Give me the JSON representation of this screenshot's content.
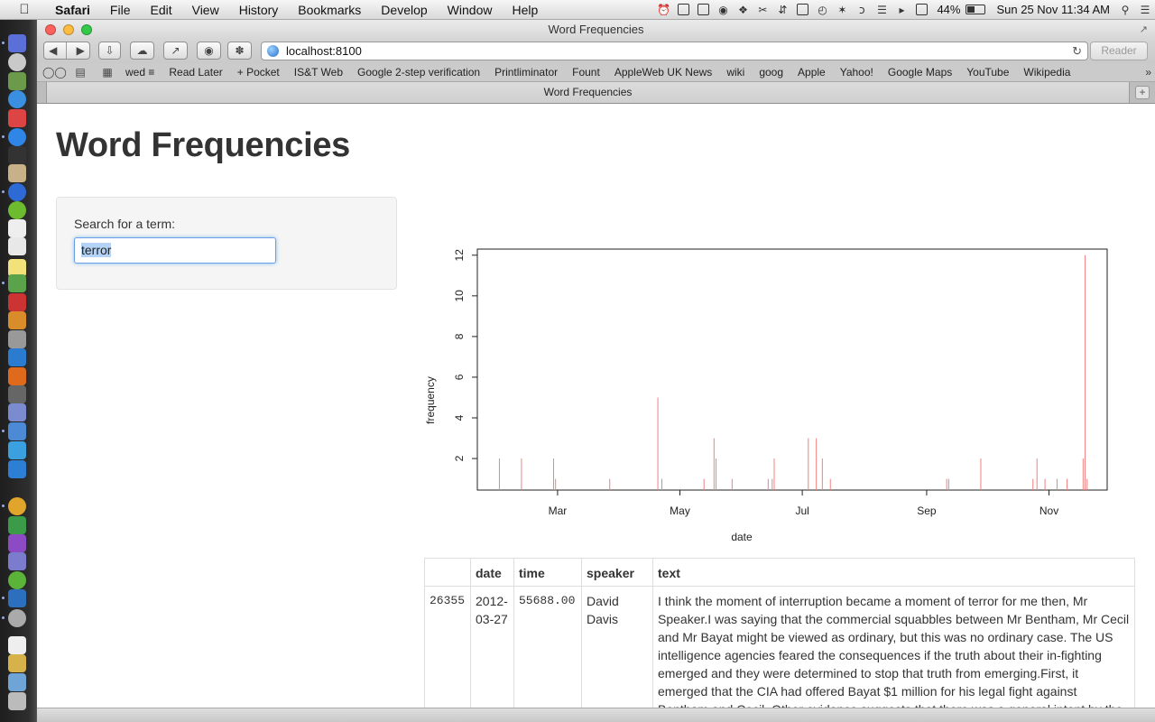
{
  "menubar": {
    "app": "Safari",
    "items": [
      "File",
      "Edit",
      "View",
      "History",
      "Bookmarks",
      "Develop",
      "Window",
      "Help"
    ],
    "battery": "44%",
    "battery_level": 0.44,
    "clock": "Sun 25 Nov  11:34 AM"
  },
  "window": {
    "title": "Word Frequencies"
  },
  "toolbar": {
    "url": "localhost:8100",
    "reader_label": "Reader"
  },
  "bookmarks": {
    "items": [
      "wed ≡",
      "Read Later",
      "+ Pocket",
      "IS&T Web",
      "Google 2-step verification",
      "Printliminator",
      "Fount",
      "AppleWeb UK News",
      "wiki",
      "goog",
      "Apple",
      "Yahoo!",
      "Google Maps",
      "YouTube",
      "Wikipedia"
    ],
    "more": "»"
  },
  "tab": {
    "title": "Word Frequencies"
  },
  "page": {
    "title": "Word Frequencies",
    "search": {
      "label": "Search for a term:",
      "value": "terror"
    }
  },
  "chart_data": {
    "type": "bar",
    "xlabel": "date",
    "ylabel": "frequency",
    "x_tick_labels": [
      "Mar",
      "May",
      "Jul",
      "Sep",
      "Nov"
    ],
    "y_tick_labels": [
      "2",
      "4",
      "6",
      "8",
      "10",
      "12"
    ],
    "x_range": [
      "2012-01-21",
      "2012-11-30"
    ],
    "ylim": [
      0.45,
      12.3
    ],
    "color": "#f08080",
    "points": [
      {
        "date": "2012-02-01",
        "value": 2
      },
      {
        "date": "2012-02-12",
        "value": 2
      },
      {
        "date": "2012-02-28",
        "value": 2
      },
      {
        "date": "2012-02-29",
        "value": 1
      },
      {
        "date": "2012-03-27",
        "value": 1
      },
      {
        "date": "2012-04-20",
        "value": 5
      },
      {
        "date": "2012-04-22",
        "value": 1
      },
      {
        "date": "2012-05-13",
        "value": 1
      },
      {
        "date": "2012-05-18",
        "value": 3
      },
      {
        "date": "2012-05-19",
        "value": 2
      },
      {
        "date": "2012-05-27",
        "value": 1
      },
      {
        "date": "2012-06-14",
        "value": 1
      },
      {
        "date": "2012-06-16",
        "value": 1
      },
      {
        "date": "2012-06-17",
        "value": 2
      },
      {
        "date": "2012-07-04",
        "value": 3
      },
      {
        "date": "2012-07-08",
        "value": 3
      },
      {
        "date": "2012-07-11",
        "value": 2
      },
      {
        "date": "2012-07-15",
        "value": 1
      },
      {
        "date": "2012-09-11",
        "value": 1
      },
      {
        "date": "2012-09-12",
        "value": 1
      },
      {
        "date": "2012-09-28",
        "value": 2
      },
      {
        "date": "2012-10-24",
        "value": 1
      },
      {
        "date": "2012-10-26",
        "value": 2
      },
      {
        "date": "2012-10-30",
        "value": 1
      },
      {
        "date": "2012-11-05",
        "value": 1
      },
      {
        "date": "2012-11-10",
        "value": 1
      },
      {
        "date": "2012-11-18",
        "value": 2
      },
      {
        "date": "2012-11-19",
        "value": 12
      },
      {
        "date": "2012-11-20",
        "value": 1
      }
    ]
  },
  "table": {
    "columns": [
      "",
      "date",
      "time",
      "speaker",
      "text"
    ],
    "rows": [
      {
        "id": "26355",
        "date": "2012-03-27",
        "time": "55688.00",
        "speaker": "David Davis",
        "text": "I think the moment of interruption became a moment of terror for me then, Mr Speaker.I was saying that the commercial squabbles between Mr Bentham, Mr Cecil and Mr Bayat might be viewed as ordinary, but this was no ordinary case. The US intelligence agencies feared the consequences if the truth about their in-fighting emerged and they were determined to stop that truth from emerging.First, it emerged that the CIA had offered Bayat $1 million for his legal fight against Bentham and Cecil. Other evidence suggests that there was a general intent by the CIA to exclude British agencies from the operation, and this may reflect that."
      }
    ]
  }
}
